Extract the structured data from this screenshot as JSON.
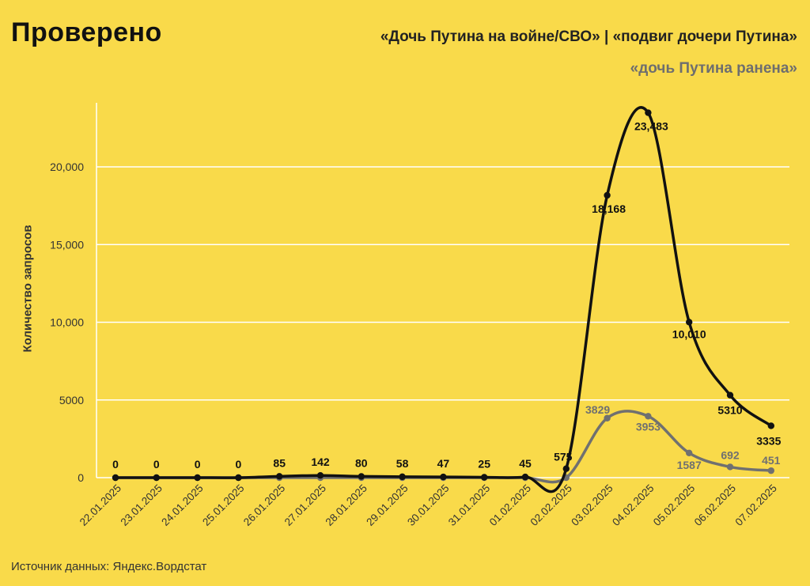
{
  "brand": {
    "logo_text": "Проверено"
  },
  "header": {
    "title_line1": "«Дочь Путина на войне/СВО» | «подвиг дочери Путина»",
    "title_line2": "«дочь Путина ранена»"
  },
  "footer": {
    "source": "Источник данных: Яндекс.Вордстат"
  },
  "colors": {
    "background": "#F9DA4A",
    "series1": "#111111",
    "series2": "#707070",
    "grid": "#FFFFFF"
  },
  "chart_data": {
    "type": "line",
    "ylabel": "Количество запросов",
    "xlabel": "",
    "ylim": [
      0,
      25000
    ],
    "yticks": [
      0,
      5000,
      10000,
      15000,
      20000
    ],
    "ytick_labels": [
      "0",
      "5000",
      "10,000",
      "15,000",
      "20,000"
    ],
    "grid": "horizontal",
    "categories": [
      "22.01.2025",
      "23.01.2025",
      "24.01.2025",
      "25.01.2025",
      "26.01.2025",
      "27.01.2025",
      "28.01.2025",
      "29.01.2025",
      "30.01.2025",
      "31.01.2025",
      "01.02.2025",
      "02.02.2025",
      "03.02.2025",
      "04.02.2025",
      "05.02.2025",
      "06.02.2025",
      "07.02.2025"
    ],
    "series": [
      {
        "values": [
          0,
          0,
          0,
          0,
          85,
          142,
          80,
          58,
          47,
          25,
          45,
          575,
          18168,
          23483,
          10010,
          5310,
          3335
        ],
        "labels": [
          "0",
          "0",
          "0",
          "0",
          "85",
          "142",
          "80",
          "58",
          "47",
          "25",
          "45",
          "575",
          "18,168",
          "23,483",
          "10,010",
          "5310",
          "3335"
        ]
      },
      {
        "values": [
          0,
          0,
          0,
          0,
          0,
          0,
          0,
          0,
          0,
          0,
          0,
          0,
          3829,
          3953,
          1587,
          692,
          451
        ],
        "labels": [
          null,
          null,
          null,
          null,
          null,
          null,
          null,
          null,
          null,
          null,
          null,
          null,
          "3829",
          "3953",
          "1587",
          "692",
          "451"
        ]
      }
    ]
  }
}
